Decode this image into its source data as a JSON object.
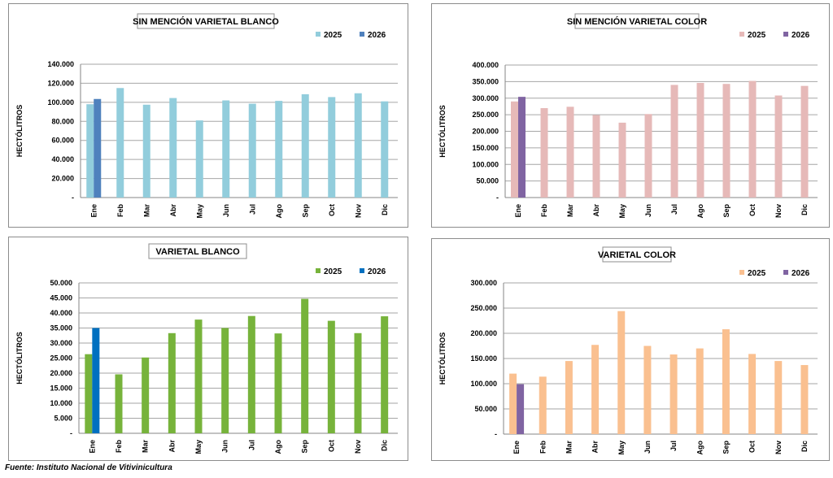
{
  "source": "Fuente: Instituto Nacional de Vitivinicultura",
  "chart_data": [
    {
      "type": "bar",
      "title": "SIN MENCIÓN VARIETAL BLANCO",
      "ylabel": "HECTÓLITROS",
      "xlabel": "",
      "ylim": [
        0,
        140000
      ],
      "yticks": [
        "-",
        "20.000",
        "40.000",
        "60.000",
        "80.000",
        "100.000",
        "120.000",
        "140.000"
      ],
      "categories": [
        "Ene",
        "Feb",
        "Mar",
        "Abr",
        "May",
        "Jun",
        "Jul",
        "Ago",
        "Sep",
        "Oct",
        "Nov",
        "Dic"
      ],
      "legend_position": "top-right",
      "grid": true,
      "series": [
        {
          "name": "2025",
          "color": "#92cddc",
          "values": [
            98000,
            115000,
            97500,
            104500,
            81000,
            102000,
            98500,
            101500,
            108500,
            105500,
            109500,
            101000
          ]
        },
        {
          "name": "2026",
          "color": "#4f81bd",
          "values": [
            103500,
            null,
            null,
            null,
            null,
            null,
            null,
            null,
            null,
            null,
            null,
            null
          ]
        }
      ]
    },
    {
      "type": "bar",
      "title": "SIN MENCIÓN VARIETAL COLOR",
      "ylabel": "HECTÓLITROS",
      "xlabel": "",
      "ylim": [
        0,
        400000
      ],
      "yticks": [
        "-",
        "50.000",
        "100.000",
        "150.000",
        "200.000",
        "250.000",
        "300.000",
        "350.000",
        "400.000"
      ],
      "categories": [
        "Ene",
        "Feb",
        "Mar",
        "Abr",
        "May",
        "Jun",
        "Jul",
        "Ago",
        "Sep",
        "Oct",
        "Nov",
        "Dic"
      ],
      "legend_position": "top-right",
      "grid": true,
      "series": [
        {
          "name": "2025",
          "color": "#e6b9b8",
          "values": [
            290000,
            270000,
            274000,
            249000,
            226000,
            252000,
            340000,
            346000,
            343000,
            352000,
            308000,
            337000
          ]
        },
        {
          "name": "2026",
          "color": "#8064a2",
          "values": [
            304000,
            null,
            null,
            null,
            null,
            null,
            null,
            null,
            null,
            null,
            null,
            null
          ]
        }
      ]
    },
    {
      "type": "bar",
      "title": "VARIETAL BLANCO",
      "ylabel": "HECTÓLITROS",
      "xlabel": "",
      "ylim": [
        0,
        50000
      ],
      "yticks": [
        "-",
        "5.000",
        "10.000",
        "15.000",
        "20.000",
        "25.000",
        "30.000",
        "35.000",
        "40.000",
        "45.000",
        "50.000"
      ],
      "categories": [
        "Ene",
        "Feb",
        "Mar",
        "Abr",
        "May",
        "Jun",
        "Jul",
        "Ago",
        "Sep",
        "Oct",
        "Nov",
        "Dic"
      ],
      "legend_position": "top-right",
      "grid": true,
      "series": [
        {
          "name": "2025",
          "color": "#77b33b",
          "values": [
            26300,
            19600,
            25200,
            33300,
            37800,
            35000,
            39000,
            33200,
            44700,
            37400,
            33300,
            38900
          ]
        },
        {
          "name": "2026",
          "color": "#0070c0",
          "values": [
            35000,
            null,
            null,
            null,
            null,
            null,
            null,
            null,
            null,
            null,
            null,
            null
          ]
        }
      ]
    },
    {
      "type": "bar",
      "title": "VARIETAL COLOR",
      "ylabel": "HECTÓLITROS",
      "xlabel": "",
      "ylim": [
        0,
        300000
      ],
      "yticks": [
        "-",
        "50.000",
        "100.000",
        "150.000",
        "200.000",
        "250.000",
        "300.000"
      ],
      "categories": [
        "Ene",
        "Feb",
        "Mar",
        "Abr",
        "May",
        "Jun",
        "Jul",
        "Ago",
        "Sep",
        "Oct",
        "Nov",
        "Dic"
      ],
      "legend_position": "top-right",
      "grid": true,
      "series": [
        {
          "name": "2025",
          "color": "#fac090",
          "values": [
            120000,
            114000,
            145000,
            177000,
            244000,
            175000,
            158000,
            170000,
            208000,
            159000,
            145000,
            137000
          ]
        },
        {
          "name": "2026",
          "color": "#8064a2",
          "values": [
            99000,
            null,
            null,
            null,
            null,
            null,
            null,
            null,
            null,
            null,
            null,
            null
          ]
        }
      ]
    }
  ]
}
